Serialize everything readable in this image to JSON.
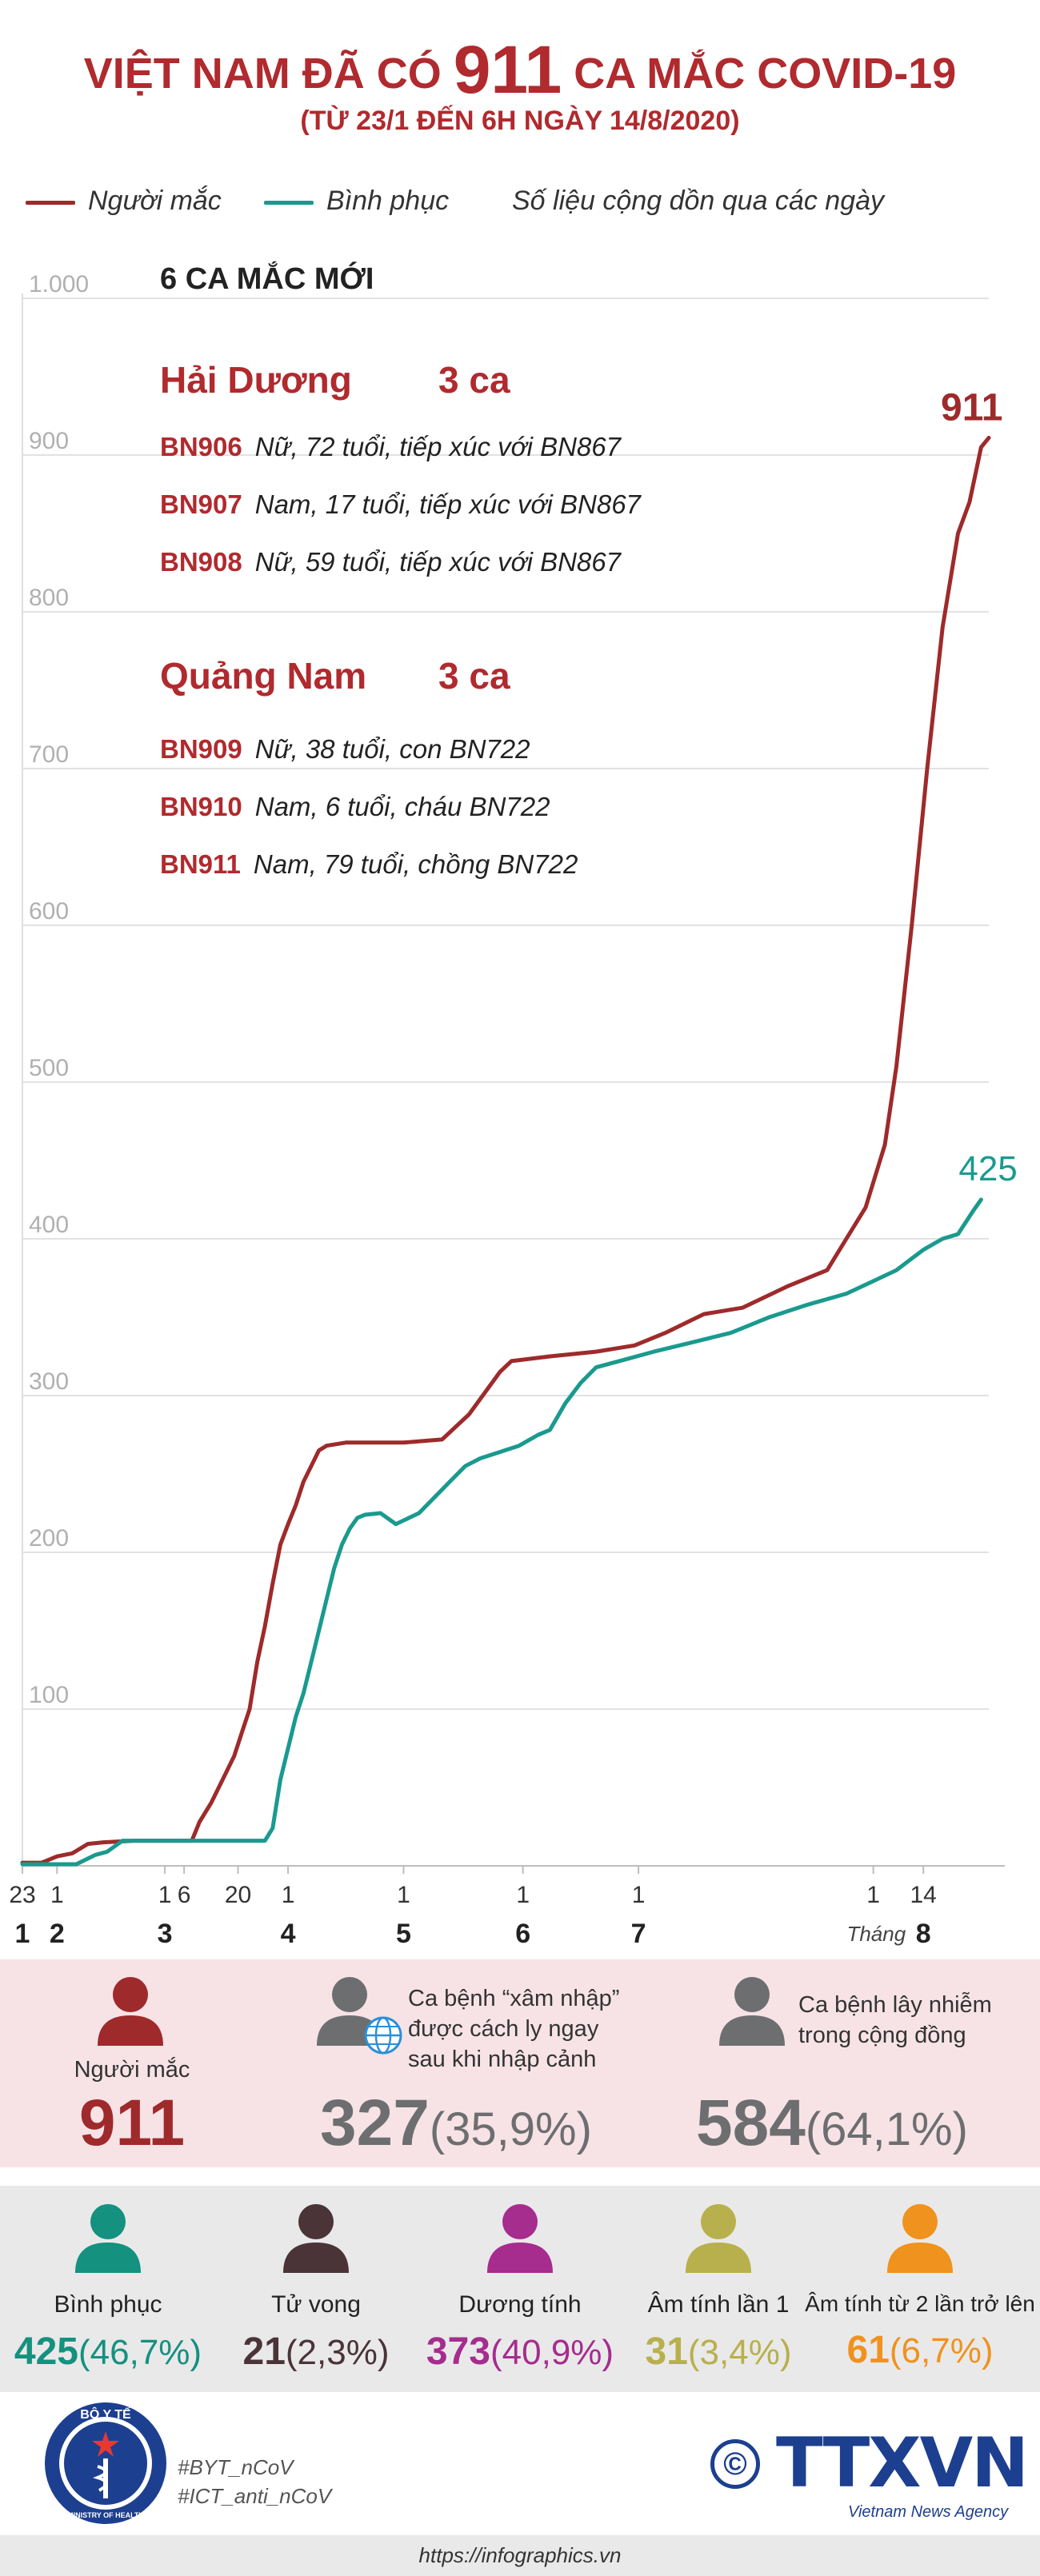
{
  "header": {
    "title_prefix": "VIỆT NAM ĐÃ CÓ",
    "title_number": "911",
    "title_suffix": "CA MẮC COVID-19",
    "subtitle": "(TỪ 23/1 ĐẾN 6H NGÀY 14/8/2020)"
  },
  "legend": {
    "infected_label": "Người mắc",
    "recovered_label": "Bình phục",
    "note": "Số liệu cộng dồn qua các ngày"
  },
  "colors": {
    "infected": "#9e2a2b",
    "recovered": "#1a9a8e",
    "title": "#b02a2e"
  },
  "chart_data": {
    "type": "line",
    "title": "Việt Nam đã có 911 ca mắc COVID-19",
    "ylim": [
      0,
      1000
    ],
    "y_ticks": [
      "1.000",
      "900",
      "800",
      "700",
      "600",
      "500",
      "400",
      "300",
      "200",
      "100"
    ],
    "x_day_ticks": [
      "23",
      "1",
      "1",
      "6",
      "20",
      "1",
      "1",
      "1",
      "1",
      "1",
      "14"
    ],
    "x_month_ticks": [
      "1",
      "2",
      "3",
      "4",
      "5",
      "6",
      "7",
      "8"
    ],
    "x_month_prefix": "Tháng",
    "series": [
      {
        "name": "Người mắc",
        "end_label": "911",
        "points": [
          [
            1,
            2
          ],
          [
            6,
            2
          ],
          [
            10,
            6
          ],
          [
            14,
            8
          ],
          [
            18,
            14
          ],
          [
            22,
            15
          ],
          [
            30,
            16
          ],
          [
            40,
            16
          ],
          [
            45,
            16
          ],
          [
            47,
            28
          ],
          [
            50,
            40
          ],
          [
            53,
            55
          ],
          [
            56,
            70
          ],
          [
            58,
            85
          ],
          [
            60,
            100
          ],
          [
            62,
            130
          ],
          [
            64,
            153
          ],
          [
            66,
            180
          ],
          [
            68,
            205
          ],
          [
            70,
            218
          ],
          [
            72,
            230
          ],
          [
            74,
            245
          ],
          [
            76,
            255
          ],
          [
            78,
            265
          ],
          [
            80,
            268
          ],
          [
            85,
            270
          ],
          [
            100,
            270
          ],
          [
            110,
            272
          ],
          [
            117,
            288
          ],
          [
            125,
            315
          ],
          [
            128,
            322
          ],
          [
            138,
            325
          ],
          [
            150,
            328
          ],
          [
            160,
            332
          ],
          [
            168,
            340
          ],
          [
            178,
            352
          ],
          [
            188,
            356
          ],
          [
            200,
            370
          ],
          [
            210,
            380
          ],
          [
            215,
            400
          ],
          [
            220,
            420
          ],
          [
            225,
            460
          ],
          [
            228,
            510
          ],
          [
            232,
            600
          ],
          [
            236,
            700
          ],
          [
            240,
            790
          ],
          [
            244,
            850
          ],
          [
            247,
            870
          ],
          [
            250,
            905
          ],
          [
            252,
            911
          ]
        ]
      },
      {
        "name": "Bình phục",
        "end_label": "425",
        "points": [
          [
            1,
            1
          ],
          [
            15,
            1
          ],
          [
            20,
            7
          ],
          [
            23,
            9
          ],
          [
            27,
            16
          ],
          [
            40,
            16
          ],
          [
            55,
            16
          ],
          [
            64,
            16
          ],
          [
            66,
            24
          ],
          [
            68,
            55
          ],
          [
            70,
            75
          ],
          [
            72,
            95
          ],
          [
            74,
            110
          ],
          [
            76,
            130
          ],
          [
            78,
            150
          ],
          [
            80,
            170
          ],
          [
            82,
            190
          ],
          [
            84,
            205
          ],
          [
            86,
            215
          ],
          [
            88,
            222
          ],
          [
            90,
            224
          ],
          [
            94,
            225
          ],
          [
            98,
            218
          ],
          [
            104,
            225
          ],
          [
            108,
            235
          ],
          [
            112,
            245
          ],
          [
            116,
            255
          ],
          [
            120,
            260
          ],
          [
            125,
            264
          ],
          [
            130,
            268
          ],
          [
            135,
            275
          ],
          [
            138,
            278
          ],
          [
            142,
            295
          ],
          [
            146,
            308
          ],
          [
            150,
            318
          ],
          [
            156,
            322
          ],
          [
            165,
            328
          ],
          [
            175,
            334
          ],
          [
            185,
            340
          ],
          [
            195,
            350
          ],
          [
            205,
            358
          ],
          [
            215,
            365
          ],
          [
            222,
            373
          ],
          [
            228,
            380
          ],
          [
            235,
            393
          ],
          [
            240,
            400
          ],
          [
            244,
            403
          ],
          [
            248,
            418
          ],
          [
            250,
            425
          ]
        ]
      }
    ]
  },
  "annotation": {
    "header": "6 CA MẮC MỚI",
    "groups": [
      {
        "province": "Hải Dương",
        "count": "3 ca",
        "cases": [
          {
            "id": "BN906",
            "desc": "Nữ, 72 tuổi, tiếp xúc với BN867"
          },
          {
            "id": "BN907",
            "desc": "Nam, 17 tuổi, tiếp xúc với BN867"
          },
          {
            "id": "BN908",
            "desc": "Nữ, 59 tuổi, tiếp xúc với BN867"
          }
        ]
      },
      {
        "province": "Quảng Nam",
        "count": "3 ca",
        "cases": [
          {
            "id": "BN909",
            "desc": "Nữ, 38 tuổi, con BN722"
          },
          {
            "id": "BN910",
            "desc": "Nam, 6 tuổi, cháu BN722"
          },
          {
            "id": "BN911",
            "desc": "Nam, 79 tuổi, chồng BN722"
          }
        ]
      }
    ]
  },
  "summary": {
    "infected": {
      "label": "Người mắc",
      "value": "911",
      "color": "#9e2a2b"
    },
    "imported": {
      "label": "Ca bệnh “xâm nhập” được cách ly ngay sau khi nhập cảnh",
      "value": "327",
      "pct": "(35,9%)",
      "color": "#6d6e70"
    },
    "community": {
      "label": "Ca bệnh lây nhiễm trong cộng đồng",
      "value": "584",
      "pct": "(64,1%)",
      "color": "#6d6e70"
    }
  },
  "stats": [
    {
      "label": "Bình phục",
      "value": "425",
      "pct": "(46,7%)",
      "color": "#14917f"
    },
    {
      "label": "Tử vong",
      "value": "21",
      "pct": "(2,3%)",
      "color": "#4a3437"
    },
    {
      "label": "Dương tính",
      "value": "373",
      "pct": "(40,9%)",
      "color": "#a62c8e"
    },
    {
      "label": "Âm tính lần 1",
      "value": "31",
      "pct": "(3,4%)",
      "color": "#b8b04c"
    },
    {
      "label": "Âm tính từ 2 lần trở lên",
      "value": "61",
      "pct": "(6,7%)",
      "color": "#f0921e"
    }
  ],
  "footer": {
    "logo_top_text": "BỘ Y TẾ",
    "logo_bottom_text": "MINISTRY OF HEALTH",
    "hashtag_1": "#BYT_nCoV",
    "hashtag_2": "#ICT_anti_nCoV",
    "copyright_symbol": "©",
    "agency_logo": "TTXVN",
    "agency_sub": "Vietnam News Agency",
    "url": "https://infographics.vn"
  }
}
